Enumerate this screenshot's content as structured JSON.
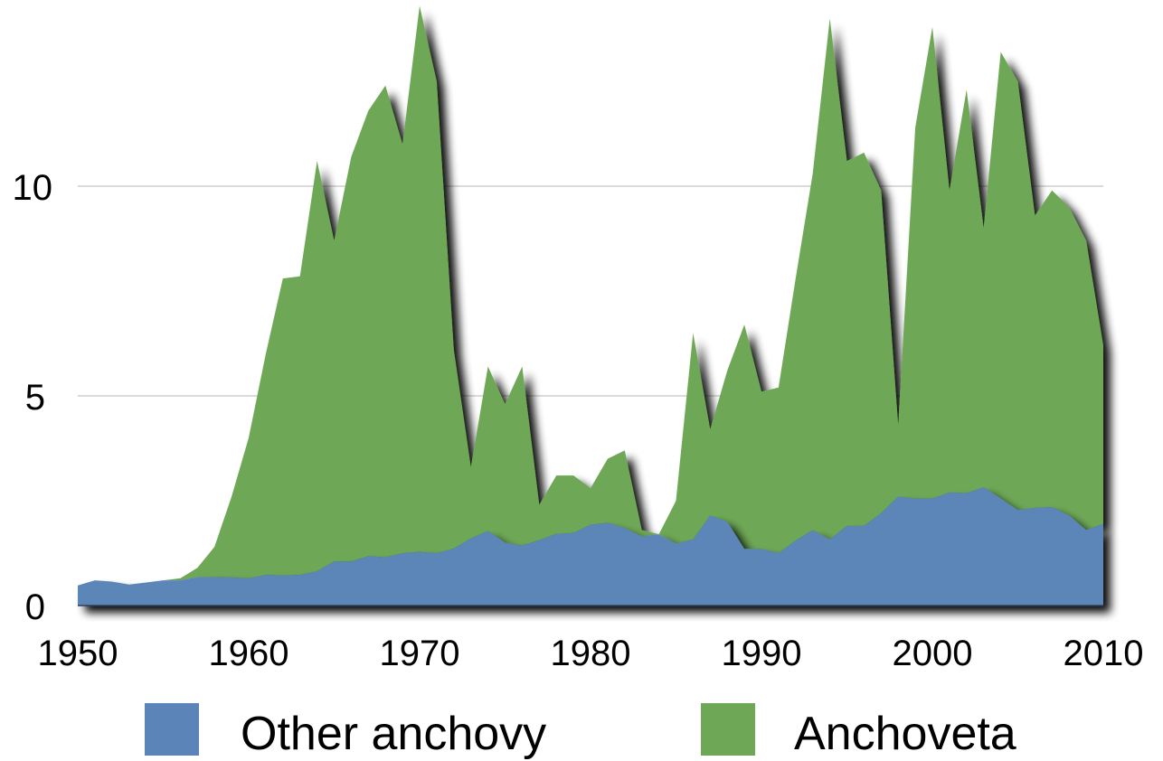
{
  "chart_data": {
    "type": "area",
    "stacked": true,
    "title": "",
    "xlabel": "",
    "ylabel": "",
    "x": [
      1950,
      1951,
      1952,
      1953,
      1954,
      1955,
      1956,
      1957,
      1958,
      1959,
      1960,
      1961,
      1962,
      1963,
      1964,
      1965,
      1966,
      1967,
      1968,
      1969,
      1970,
      1971,
      1972,
      1973,
      1974,
      1975,
      1976,
      1977,
      1978,
      1979,
      1980,
      1981,
      1982,
      1983,
      1984,
      1985,
      1986,
      1987,
      1988,
      1989,
      1990,
      1991,
      1992,
      1993,
      1994,
      1995,
      1996,
      1997,
      1998,
      1999,
      2000,
      2001,
      2002,
      2003,
      2004,
      2005,
      2006,
      2007,
      2008,
      2009,
      2010
    ],
    "series": [
      {
        "name": "Other anchovy",
        "color": "#5b85b8",
        "values": [
          0.48,
          0.6,
          0.57,
          0.5,
          0.55,
          0.6,
          0.6,
          0.68,
          0.68,
          0.67,
          0.65,
          0.73,
          0.72,
          0.73,
          0.82,
          1.05,
          1.05,
          1.18,
          1.15,
          1.25,
          1.28,
          1.25,
          1.36,
          1.6,
          1.78,
          1.5,
          1.43,
          1.56,
          1.71,
          1.73,
          1.93,
          1.97,
          1.85,
          1.65,
          1.7,
          1.48,
          1.58,
          2.15,
          2.0,
          1.35,
          1.35,
          1.25,
          1.55,
          1.8,
          1.58,
          1.9,
          1.9,
          2.2,
          2.6,
          2.55,
          2.55,
          2.7,
          2.68,
          2.82,
          2.55,
          2.28,
          2.33,
          2.35,
          2.15,
          1.8,
          1.95
        ]
      },
      {
        "name": "Anchoveta",
        "color": "#6ea856",
        "values": [
          0,
          0,
          0,
          0,
          0,
          0,
          0.05,
          0.22,
          0.72,
          1.93,
          3.35,
          5.27,
          7.08,
          7.12,
          9.78,
          7.65,
          9.65,
          10.62,
          11.25,
          9.75,
          13.02,
          11.25,
          4.74,
          1.7,
          3.92,
          3.3,
          4.27,
          0.84,
          1.39,
          1.37,
          0.87,
          1.53,
          1.85,
          0.15,
          0,
          1.02,
          4.92,
          2.05,
          3.6,
          5.35,
          3.75,
          3.95,
          6.25,
          8.5,
          12.42,
          8.7,
          8.9,
          7.7,
          1.7,
          8.85,
          11.25,
          7.2,
          9.62,
          6.18,
          10.65,
          10.22,
          6.97,
          7.55,
          7.35,
          6.9,
          4.25
        ]
      }
    ],
    "xlim": [
      1950,
      2010
    ],
    "ylim": [
      0,
      14.44
    ],
    "x_ticks": [
      "1950",
      "1960",
      "1970",
      "1980",
      "1990",
      "2000",
      "2010"
    ],
    "y_ticks": [
      "0",
      "5",
      "10"
    ],
    "grid": "horizontal",
    "legend_position": "bottom"
  }
}
